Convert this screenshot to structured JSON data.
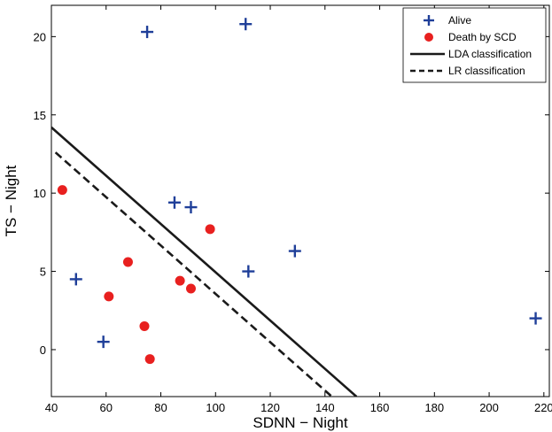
{
  "chart_data": {
    "type": "scatter",
    "title": "",
    "xlabel": "SDNN − Night",
    "ylabel": "TS − Night",
    "xlim": [
      40,
      222
    ],
    "ylim": [
      -3,
      22
    ],
    "xticks": [
      40,
      60,
      80,
      100,
      120,
      140,
      160,
      180,
      200,
      220
    ],
    "yticks": [
      0,
      5,
      10,
      15,
      20
    ],
    "grid": false,
    "legend_position": "top-right",
    "series": [
      {
        "name": "Alive",
        "marker": "plus",
        "color": "#1f3f99",
        "points": [
          {
            "x": 75,
            "y": 20.3
          },
          {
            "x": 111,
            "y": 20.8
          },
          {
            "x": 85,
            "y": 9.4
          },
          {
            "x": 91,
            "y": 9.1
          },
          {
            "x": 49,
            "y": 4.5
          },
          {
            "x": 112,
            "y": 5.0
          },
          {
            "x": 129,
            "y": 6.3
          },
          {
            "x": 59,
            "y": 0.5
          },
          {
            "x": 217,
            "y": 2.0
          }
        ]
      },
      {
        "name": "Death by SCD",
        "marker": "dot",
        "color": "#e8201f",
        "points": [
          {
            "x": 44,
            "y": 10.2
          },
          {
            "x": 98,
            "y": 7.7
          },
          {
            "x": 68,
            "y": 5.6
          },
          {
            "x": 61,
            "y": 3.4
          },
          {
            "x": 87,
            "y": 4.4
          },
          {
            "x": 91,
            "y": 3.9
          },
          {
            "x": 74,
            "y": 1.5
          },
          {
            "x": 76,
            "y": -0.6
          }
        ]
      }
    ],
    "lines": [
      {
        "name": "LDA classification",
        "style": "solid",
        "color": "#1a1a1a",
        "points": [
          {
            "x": 40,
            "y": 14.2
          },
          {
            "x": 151.5,
            "y": -3.0
          }
        ]
      },
      {
        "name": "LR classification",
        "style": "dashed",
        "color": "#1a1a1a",
        "points": [
          {
            "x": 41.5,
            "y": 12.6
          },
          {
            "x": 142.5,
            "y": -3.0
          }
        ]
      }
    ]
  }
}
